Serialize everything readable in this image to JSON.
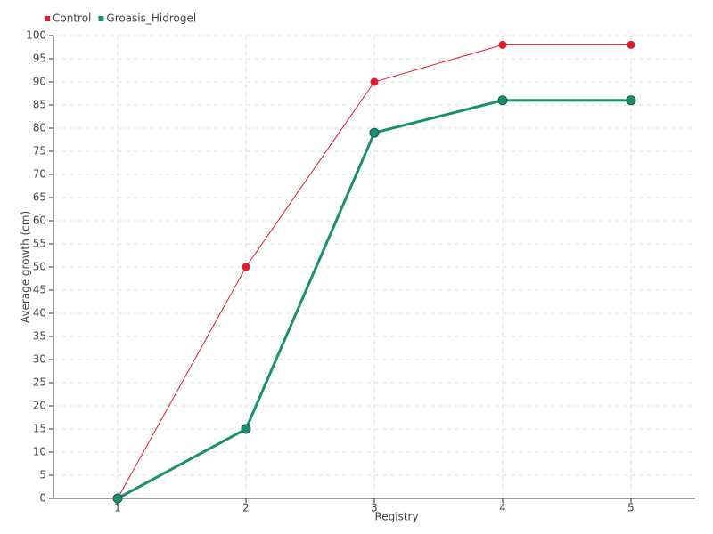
{
  "chart_data": {
    "type": "line",
    "x_label": "Registry",
    "y_label": "Average growth (cm)",
    "categories": [
      "1",
      "2",
      "3",
      "4",
      "5"
    ],
    "series": [
      {
        "name": "Control",
        "color": "#e31a2a",
        "values": [
          0,
          50,
          90,
          98,
          98
        ]
      },
      {
        "name": "Groasis_Hidrogel",
        "color": "#1b8f72",
        "values": [
          0,
          15,
          79,
          86,
          86
        ]
      }
    ],
    "ylim": [
      0,
      100
    ],
    "yticks": [
      0,
      5,
      10,
      15,
      20,
      25,
      30,
      35,
      40,
      45,
      50,
      55,
      60,
      65,
      70,
      75,
      80,
      85,
      90,
      95,
      100
    ],
    "grid": true,
    "legend": "top-left"
  }
}
